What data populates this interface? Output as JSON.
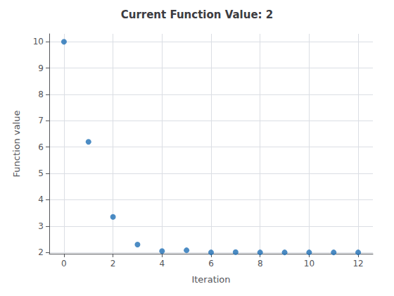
{
  "chart_data": {
    "type": "scatter",
    "title": "Current Function Value: 2",
    "xlabel": "Iteration",
    "ylabel": "Function value",
    "x": [
      0,
      1,
      2,
      3,
      4,
      5,
      6,
      7,
      8,
      9,
      10,
      11,
      12
    ],
    "y": [
      10,
      6.2,
      3.35,
      2.3,
      2.05,
      2.08,
      2.0,
      2.01,
      2.0,
      2.0,
      2.0,
      2.0,
      2.0
    ],
    "xlim": [
      -0.6,
      12.6
    ],
    "ylim": [
      1.95,
      10.3
    ],
    "xticks": [
      0,
      2,
      4,
      6,
      8,
      10,
      12
    ],
    "yticks": [
      2,
      3,
      4,
      5,
      6,
      7,
      8,
      9,
      10
    ],
    "color": "#1f6fb5",
    "grid": true
  }
}
